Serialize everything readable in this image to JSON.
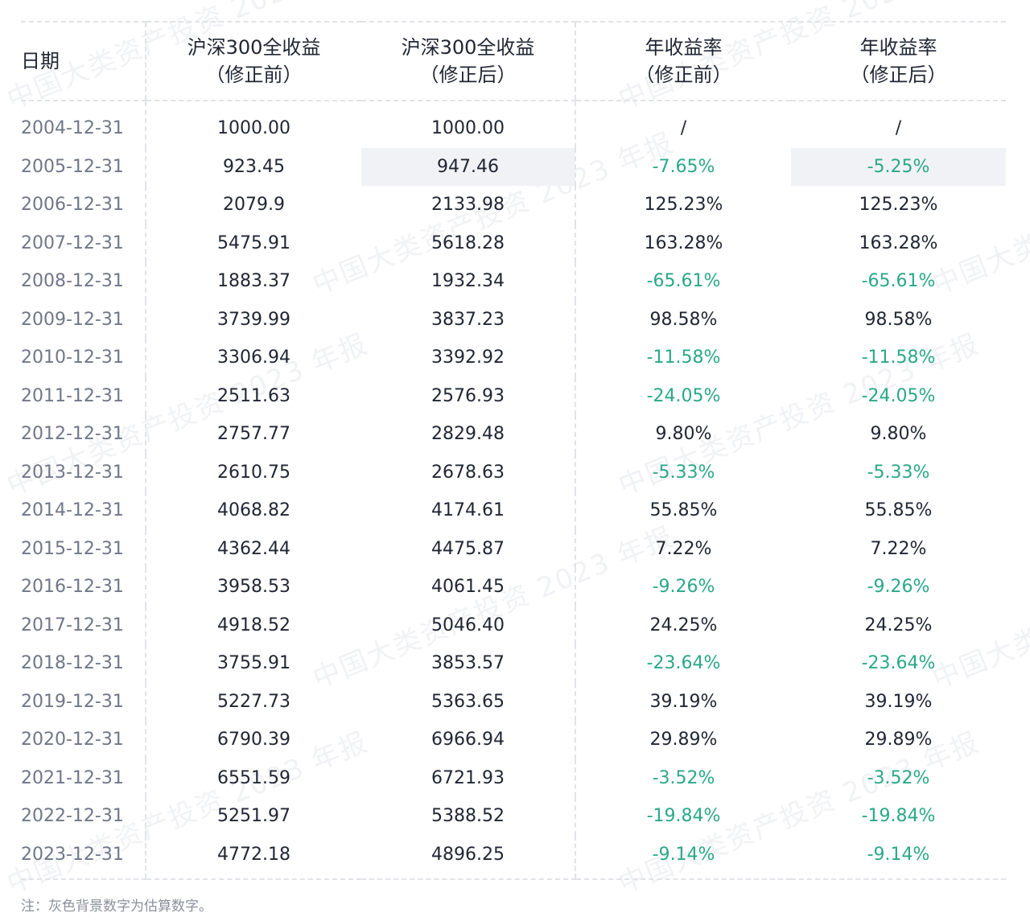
{
  "watermark_text": "中国大类资产投资 2023 年报",
  "table": {
    "headers": [
      {
        "line1": "日期",
        "line2": ""
      },
      {
        "line1": "沪深300全收益",
        "line2": "（修正前）"
      },
      {
        "line1": "沪深300全收益",
        "line2": "（修正后）"
      },
      {
        "line1": "年收益率",
        "line2": "（修正前）"
      },
      {
        "line1": "年收益率",
        "line2": "（修正后）"
      }
    ],
    "rows": [
      {
        "date": "2004-12-31",
        "before": "1000.00",
        "after": "1000.00",
        "ret_before": "/",
        "ret_after": "/",
        "neg": false,
        "estimated": false
      },
      {
        "date": "2005-12-31",
        "before": "923.45",
        "after": "947.46",
        "ret_before": "-7.65%",
        "ret_after": "-5.25%",
        "neg": true,
        "estimated": true
      },
      {
        "date": "2006-12-31",
        "before": "2079.9",
        "after": "2133.98",
        "ret_before": "125.23%",
        "ret_after": "125.23%",
        "neg": false,
        "estimated": false
      },
      {
        "date": "2007-12-31",
        "before": "5475.91",
        "after": "5618.28",
        "ret_before": "163.28%",
        "ret_after": "163.28%",
        "neg": false,
        "estimated": false
      },
      {
        "date": "2008-12-31",
        "before": "1883.37",
        "after": "1932.34",
        "ret_before": "-65.61%",
        "ret_after": "-65.61%",
        "neg": true,
        "estimated": false
      },
      {
        "date": "2009-12-31",
        "before": "3739.99",
        "after": "3837.23",
        "ret_before": "98.58%",
        "ret_after": "98.58%",
        "neg": false,
        "estimated": false
      },
      {
        "date": "2010-12-31",
        "before": "3306.94",
        "after": "3392.92",
        "ret_before": "-11.58%",
        "ret_after": "-11.58%",
        "neg": true,
        "estimated": false
      },
      {
        "date": "2011-12-31",
        "before": "2511.63",
        "after": "2576.93",
        "ret_before": "-24.05%",
        "ret_after": "-24.05%",
        "neg": true,
        "estimated": false
      },
      {
        "date": "2012-12-31",
        "before": "2757.77",
        "after": "2829.48",
        "ret_before": "9.80%",
        "ret_after": "9.80%",
        "neg": false,
        "estimated": false
      },
      {
        "date": "2013-12-31",
        "before": "2610.75",
        "after": "2678.63",
        "ret_before": "-5.33%",
        "ret_after": "-5.33%",
        "neg": true,
        "estimated": false
      },
      {
        "date": "2014-12-31",
        "before": "4068.82",
        "after": "4174.61",
        "ret_before": "55.85%",
        "ret_after": "55.85%",
        "neg": false,
        "estimated": false
      },
      {
        "date": "2015-12-31",
        "before": "4362.44",
        "after": "4475.87",
        "ret_before": "7.22%",
        "ret_after": "7.22%",
        "neg": false,
        "estimated": false
      },
      {
        "date": "2016-12-31",
        "before": "3958.53",
        "after": "4061.45",
        "ret_before": "-9.26%",
        "ret_after": "-9.26%",
        "neg": true,
        "estimated": false
      },
      {
        "date": "2017-12-31",
        "before": "4918.52",
        "after": "5046.40",
        "ret_before": "24.25%",
        "ret_after": "24.25%",
        "neg": false,
        "estimated": false
      },
      {
        "date": "2018-12-31",
        "before": "3755.91",
        "after": "3853.57",
        "ret_before": "-23.64%",
        "ret_after": "-23.64%",
        "neg": true,
        "estimated": false
      },
      {
        "date": "2019-12-31",
        "before": "5227.73",
        "after": "5363.65",
        "ret_before": "39.19%",
        "ret_after": "39.19%",
        "neg": false,
        "estimated": false
      },
      {
        "date": "2020-12-31",
        "before": "6790.39",
        "after": "6966.94",
        "ret_before": "29.89%",
        "ret_after": "29.89%",
        "neg": false,
        "estimated": false
      },
      {
        "date": "2021-12-31",
        "before": "6551.59",
        "after": "6721.93",
        "ret_before": "-3.52%",
        "ret_after": "-3.52%",
        "neg": true,
        "estimated": false
      },
      {
        "date": "2022-12-31",
        "before": "5251.97",
        "after": "5388.52",
        "ret_before": "-19.84%",
        "ret_after": "-19.84%",
        "neg": true,
        "estimated": false
      },
      {
        "date": "2023-12-31",
        "before": "4772.18",
        "after": "4896.25",
        "ret_before": "-9.14%",
        "ret_after": "-9.14%",
        "neg": true,
        "estimated": false
      }
    ]
  },
  "note": "注：灰色背景数字为估算数字。",
  "colors": {
    "negative": "#2aa889",
    "estimated_bg": "#f1f2f5",
    "date_text": "#6f7788",
    "body_text": "#1f2633"
  }
}
